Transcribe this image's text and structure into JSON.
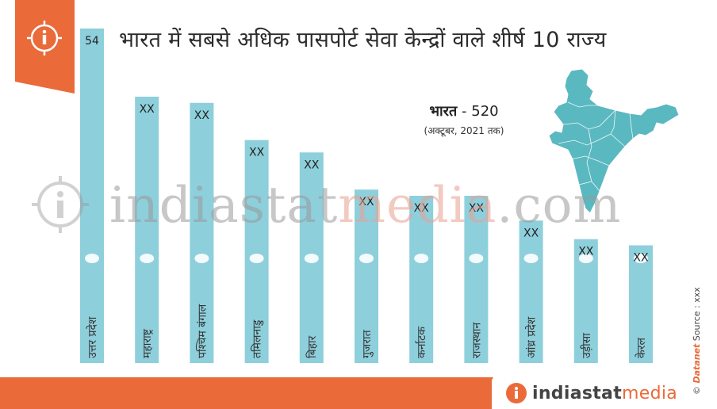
{
  "title": "भारत में सबसे अधिक पासपोर्ट सेवा केन्द्रों वाले शीर्ष 10 राज्य",
  "summary": {
    "label": "भारत",
    "separator": " - ",
    "value": "520",
    "note": "(अक्टूबर, 2021 तक)"
  },
  "watermark": {
    "part1": "indiastat",
    "part2": "media",
    "part3": ".com"
  },
  "footer": {
    "brand_part1": "indiastat",
    "brand_part2": "media"
  },
  "credit": {
    "copyright": "©",
    "brand": "Datanet",
    "source": "Source : xxx"
  },
  "colors": {
    "bar": "#8ecfdc",
    "accent": "#ea6a3a",
    "map": "#5ab8c0"
  },
  "icons": {
    "badge": "info-icon",
    "footer": "info-icon"
  },
  "chart_data": {
    "type": "bar",
    "title": "भारत में सबसे अधिक पासपोर्ट सेवा केन्द्रों वाले शीर्ष 10 राज्य",
    "categories": [
      "उत्तर प्रदेश",
      "महाराष्ट्र",
      "पश्चिम बंगाल",
      "तमिलनाडु",
      "बिहार",
      "गुजरात",
      "कर्नाटक",
      "राजस्थान",
      "आंध्र प्रदेश",
      "उड़ीसा",
      "केरल"
    ],
    "values": [
      54,
      43,
      42,
      36,
      34,
      28,
      27,
      27,
      23,
      20,
      19
    ],
    "data_labels": [
      "54",
      "XX",
      "XX",
      "XX",
      "XX",
      "XX",
      "XX",
      "XX",
      "XX",
      "XX",
      "XX"
    ],
    "ylim": [
      0,
      54
    ],
    "grid": false,
    "xlabel": "",
    "ylabel": ""
  }
}
